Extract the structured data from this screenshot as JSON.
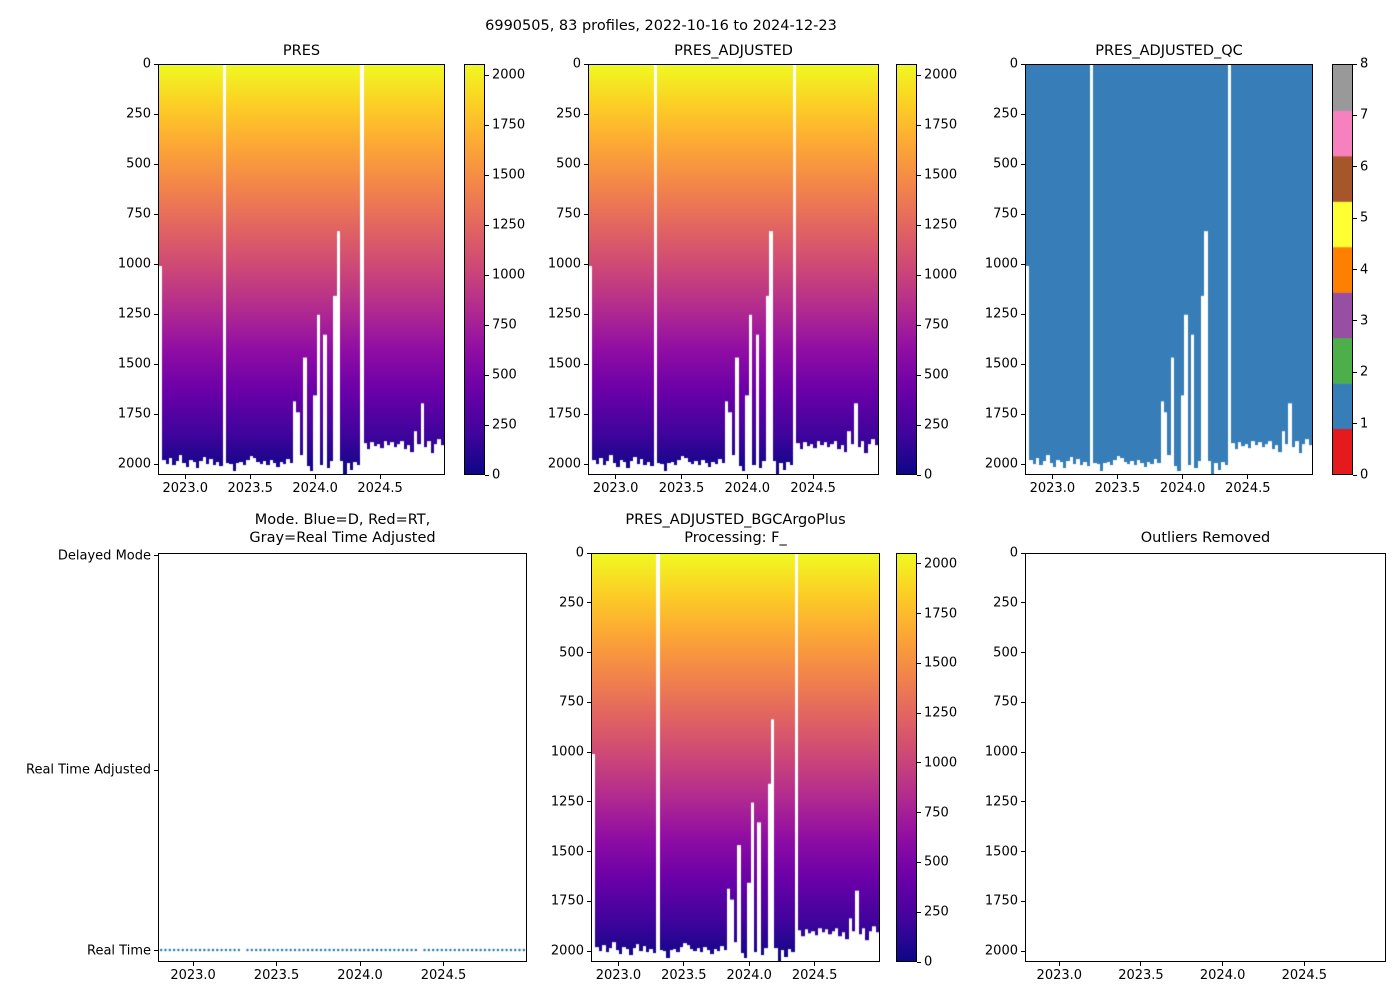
{
  "figure": {
    "suptitle": "6990505, 83 profiles, 2022-10-16 to 2024-12-23",
    "background": "#ffffff"
  },
  "chart_data": {
    "type": "heatmap",
    "float_id": "6990505",
    "n_profiles": 83,
    "date_range": "2022-10-16 to 2024-12-23",
    "xlim": [
      2022.79,
      2025.0
    ],
    "xticks": {
      "values": [
        2023.0,
        2023.5,
        2024.0,
        2024.5
      ],
      "labels": [
        "2023.0",
        "2023.5",
        "2024.0",
        "2024.5"
      ]
    },
    "pressure_ylim": [
      0,
      2055
    ],
    "pressure_yticks": [
      "0",
      "250",
      "500",
      "750",
      "1000",
      "1250",
      "1500",
      "1750",
      "2000"
    ],
    "profiles": {
      "n_slots": 85,
      "start_year": 2022.8,
      "slot_step_years": 0.026,
      "max_pressure_dbar": [
        1010,
        1985,
        2005,
        1975,
        2010,
        1990,
        1960,
        2000,
        2020,
        1985,
        1995,
        2025,
        1990,
        1970,
        2005,
        1980,
        2010,
        1995,
        2015,
        null,
        2000,
        2005,
        2040,
        2000,
        1995,
        2010,
        1985,
        1965,
        1975,
        1995,
        2005,
        1990,
        2010,
        1985,
        2000,
        2020,
        1995,
        2005,
        1980,
        2000,
        1690,
        1745,
        1960,
        1470,
        2015,
        2040,
        1660,
        1255,
        2010,
        1355,
        2025,
        1990,
        1160,
        835,
        1990,
        2055,
        2000,
        2035,
        1995,
        2010,
        null,
        1900,
        1930,
        1895,
        1915,
        1905,
        1925,
        1890,
        1910,
        1895,
        1920,
        1905,
        1890,
        1930,
        1910,
        1945,
        1840,
        1905,
        1700,
        1920,
        1890,
        1950,
        1905,
        1880,
        1910
      ]
    },
    "panels": [
      {
        "id": "pres",
        "title_lines": [
          "PRES"
        ],
        "type": "pressure_heatmap",
        "yticks": [
          "0",
          "250",
          "500",
          "750",
          "1000",
          "1250",
          "1500",
          "1750",
          "2000"
        ],
        "colorbar_ticks": [
          "0",
          "250",
          "500",
          "750",
          "1000",
          "1250",
          "1500",
          "1750",
          "2000"
        ]
      },
      {
        "id": "pres_adjusted",
        "title_lines": [
          "PRES_ADJUSTED"
        ],
        "type": "pressure_heatmap",
        "yticks": [
          "0",
          "250",
          "500",
          "750",
          "1000",
          "1250",
          "1500",
          "1750",
          "2000"
        ],
        "colorbar_ticks": [
          "0",
          "250",
          "500",
          "750",
          "1000",
          "1250",
          "1500",
          "1750",
          "2000"
        ]
      },
      {
        "id": "pres_adjusted_qc",
        "title_lines": [
          "PRES_ADJUSTED_QC"
        ],
        "type": "qc_heatmap",
        "qc_value_shown": 1,
        "yticks": [
          "0",
          "250",
          "500",
          "750",
          "1000",
          "1250",
          "1500",
          "1750",
          "2000"
        ],
        "colorbar_ticks": [
          "0",
          "1",
          "2",
          "3",
          "4",
          "5",
          "6",
          "7",
          "8"
        ]
      },
      {
        "id": "mode",
        "title_lines": [
          "Mode. Blue=D, Red=RT,",
          "Gray=Real Time Adjusted"
        ],
        "type": "mode_dots",
        "mode_value": "Real Time",
        "yticks": [
          "Delayed Mode",
          "Real Time Adjusted",
          "Real Time"
        ]
      },
      {
        "id": "bgc",
        "title_lines": [
          "PRES_ADJUSTED_BGCArgoPlus",
          "Processing: F_"
        ],
        "type": "pressure_heatmap",
        "yticks": [
          "0",
          "250",
          "500",
          "750",
          "1000",
          "1250",
          "1500",
          "1750",
          "2000"
        ],
        "colorbar_ticks": [
          "0",
          "250",
          "500",
          "750",
          "1000",
          "1250",
          "1500",
          "1750",
          "2000"
        ]
      },
      {
        "id": "outliers",
        "title_lines": [
          "Outliers Removed"
        ],
        "type": "empty",
        "yticks": [
          "0",
          "250",
          "500",
          "750",
          "1000",
          "1250",
          "1500",
          "1750",
          "2000"
        ]
      }
    ],
    "colors": {
      "dot_color": "#1f77b4",
      "qc_fill": "#377eb8",
      "qc_palette": [
        "#e41a1c",
        "#377eb8",
        "#4daf4a",
        "#984ea3",
        "#ff7f00",
        "#ffff33",
        "#a65628",
        "#f781bf",
        "#999999"
      ],
      "plasma_stops": [
        {
          "t": 0.0,
          "c": "#0d0887"
        },
        {
          "t": 0.1,
          "c": "#41049d"
        },
        {
          "t": 0.2,
          "c": "#6a00a8"
        },
        {
          "t": 0.3,
          "c": "#8f0da4"
        },
        {
          "t": 0.4,
          "c": "#b12a90"
        },
        {
          "t": 0.5,
          "c": "#cc4778"
        },
        {
          "t": 0.6,
          "c": "#e16462"
        },
        {
          "t": 0.7,
          "c": "#f2844b"
        },
        {
          "t": 0.8,
          "c": "#fca636"
        },
        {
          "t": 0.9,
          "c": "#fcce25"
        },
        {
          "t": 1.0,
          "c": "#f0f921"
        }
      ]
    }
  }
}
